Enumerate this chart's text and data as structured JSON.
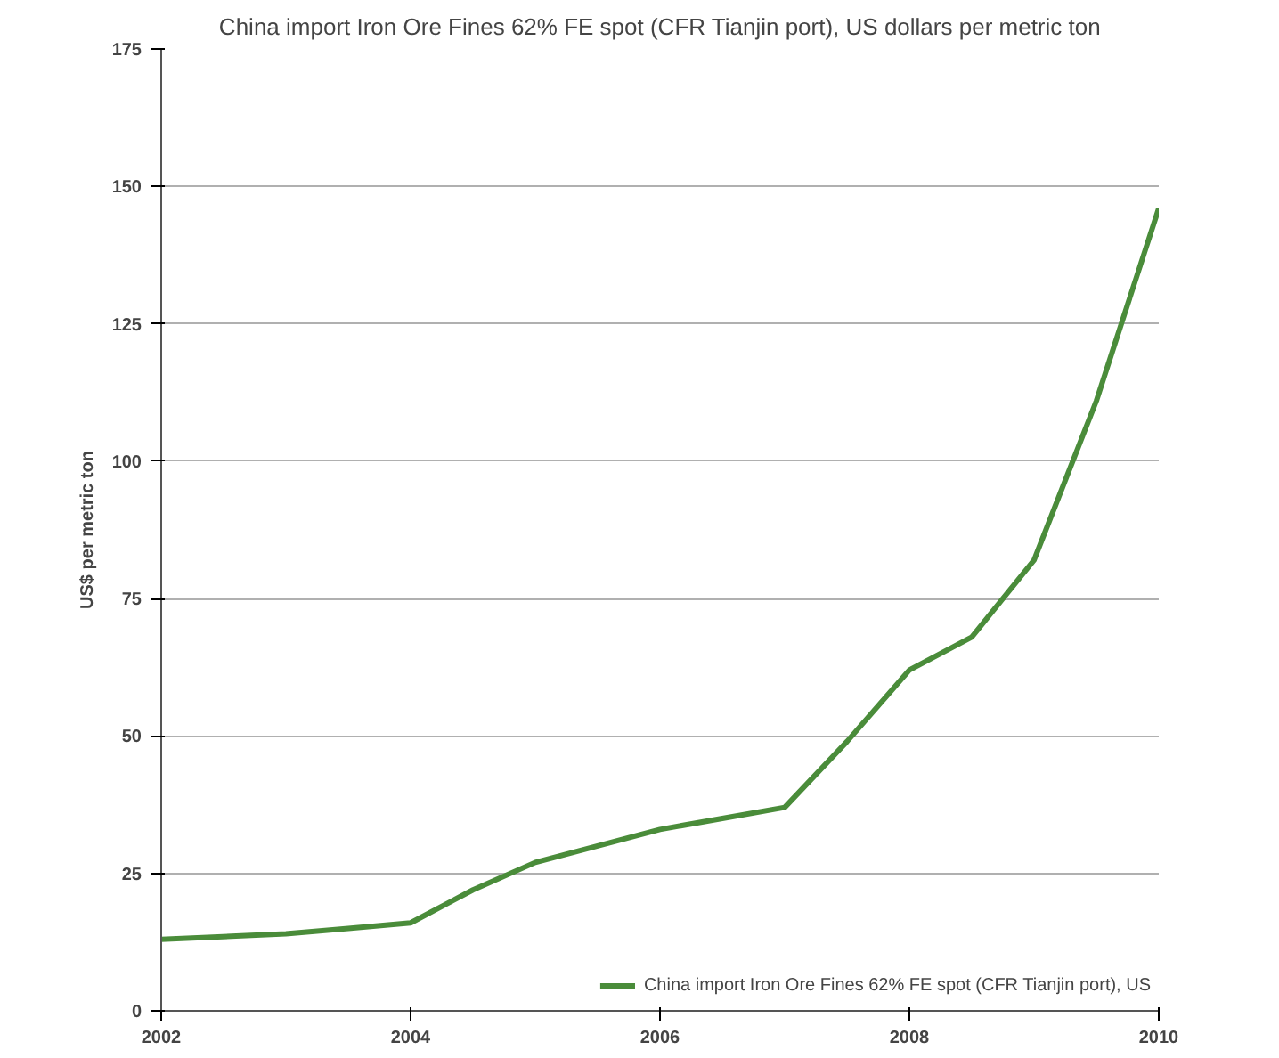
{
  "chart_data": {
    "type": "line",
    "title": "China import Iron Ore Fines 62% FE spot (CFR Tianjin port), US dollars per metric ton",
    "ylabel": "US$ per metric ton",
    "x": [
      2002,
      2003,
      2003.5,
      2004,
      2004.5,
      2005,
      2005.5,
      2006,
      2006.5,
      2007,
      2007.5,
      2008,
      2008.5,
      2009,
      2009.5,
      2010
    ],
    "series": [
      {
        "name": "China import Iron Ore Fines 62% FE spot (CFR Tianjin port), US",
        "color": "#4a8c3a",
        "values": [
          13,
          14,
          15,
          16,
          22,
          27,
          30,
          33,
          35,
          37,
          49,
          62,
          68,
          82,
          111,
          146
        ]
      }
    ],
    "xlim": [
      2002,
      2010
    ],
    "xticks": [
      2002,
      2004,
      2006,
      2008,
      2010
    ],
    "ylim": [
      0,
      175
    ],
    "yticks": [
      0,
      25,
      50,
      75,
      100,
      125,
      150,
      175
    ],
    "grid": "y",
    "legend": "bottom right",
    "line_style": "solid",
    "marker": "none"
  }
}
